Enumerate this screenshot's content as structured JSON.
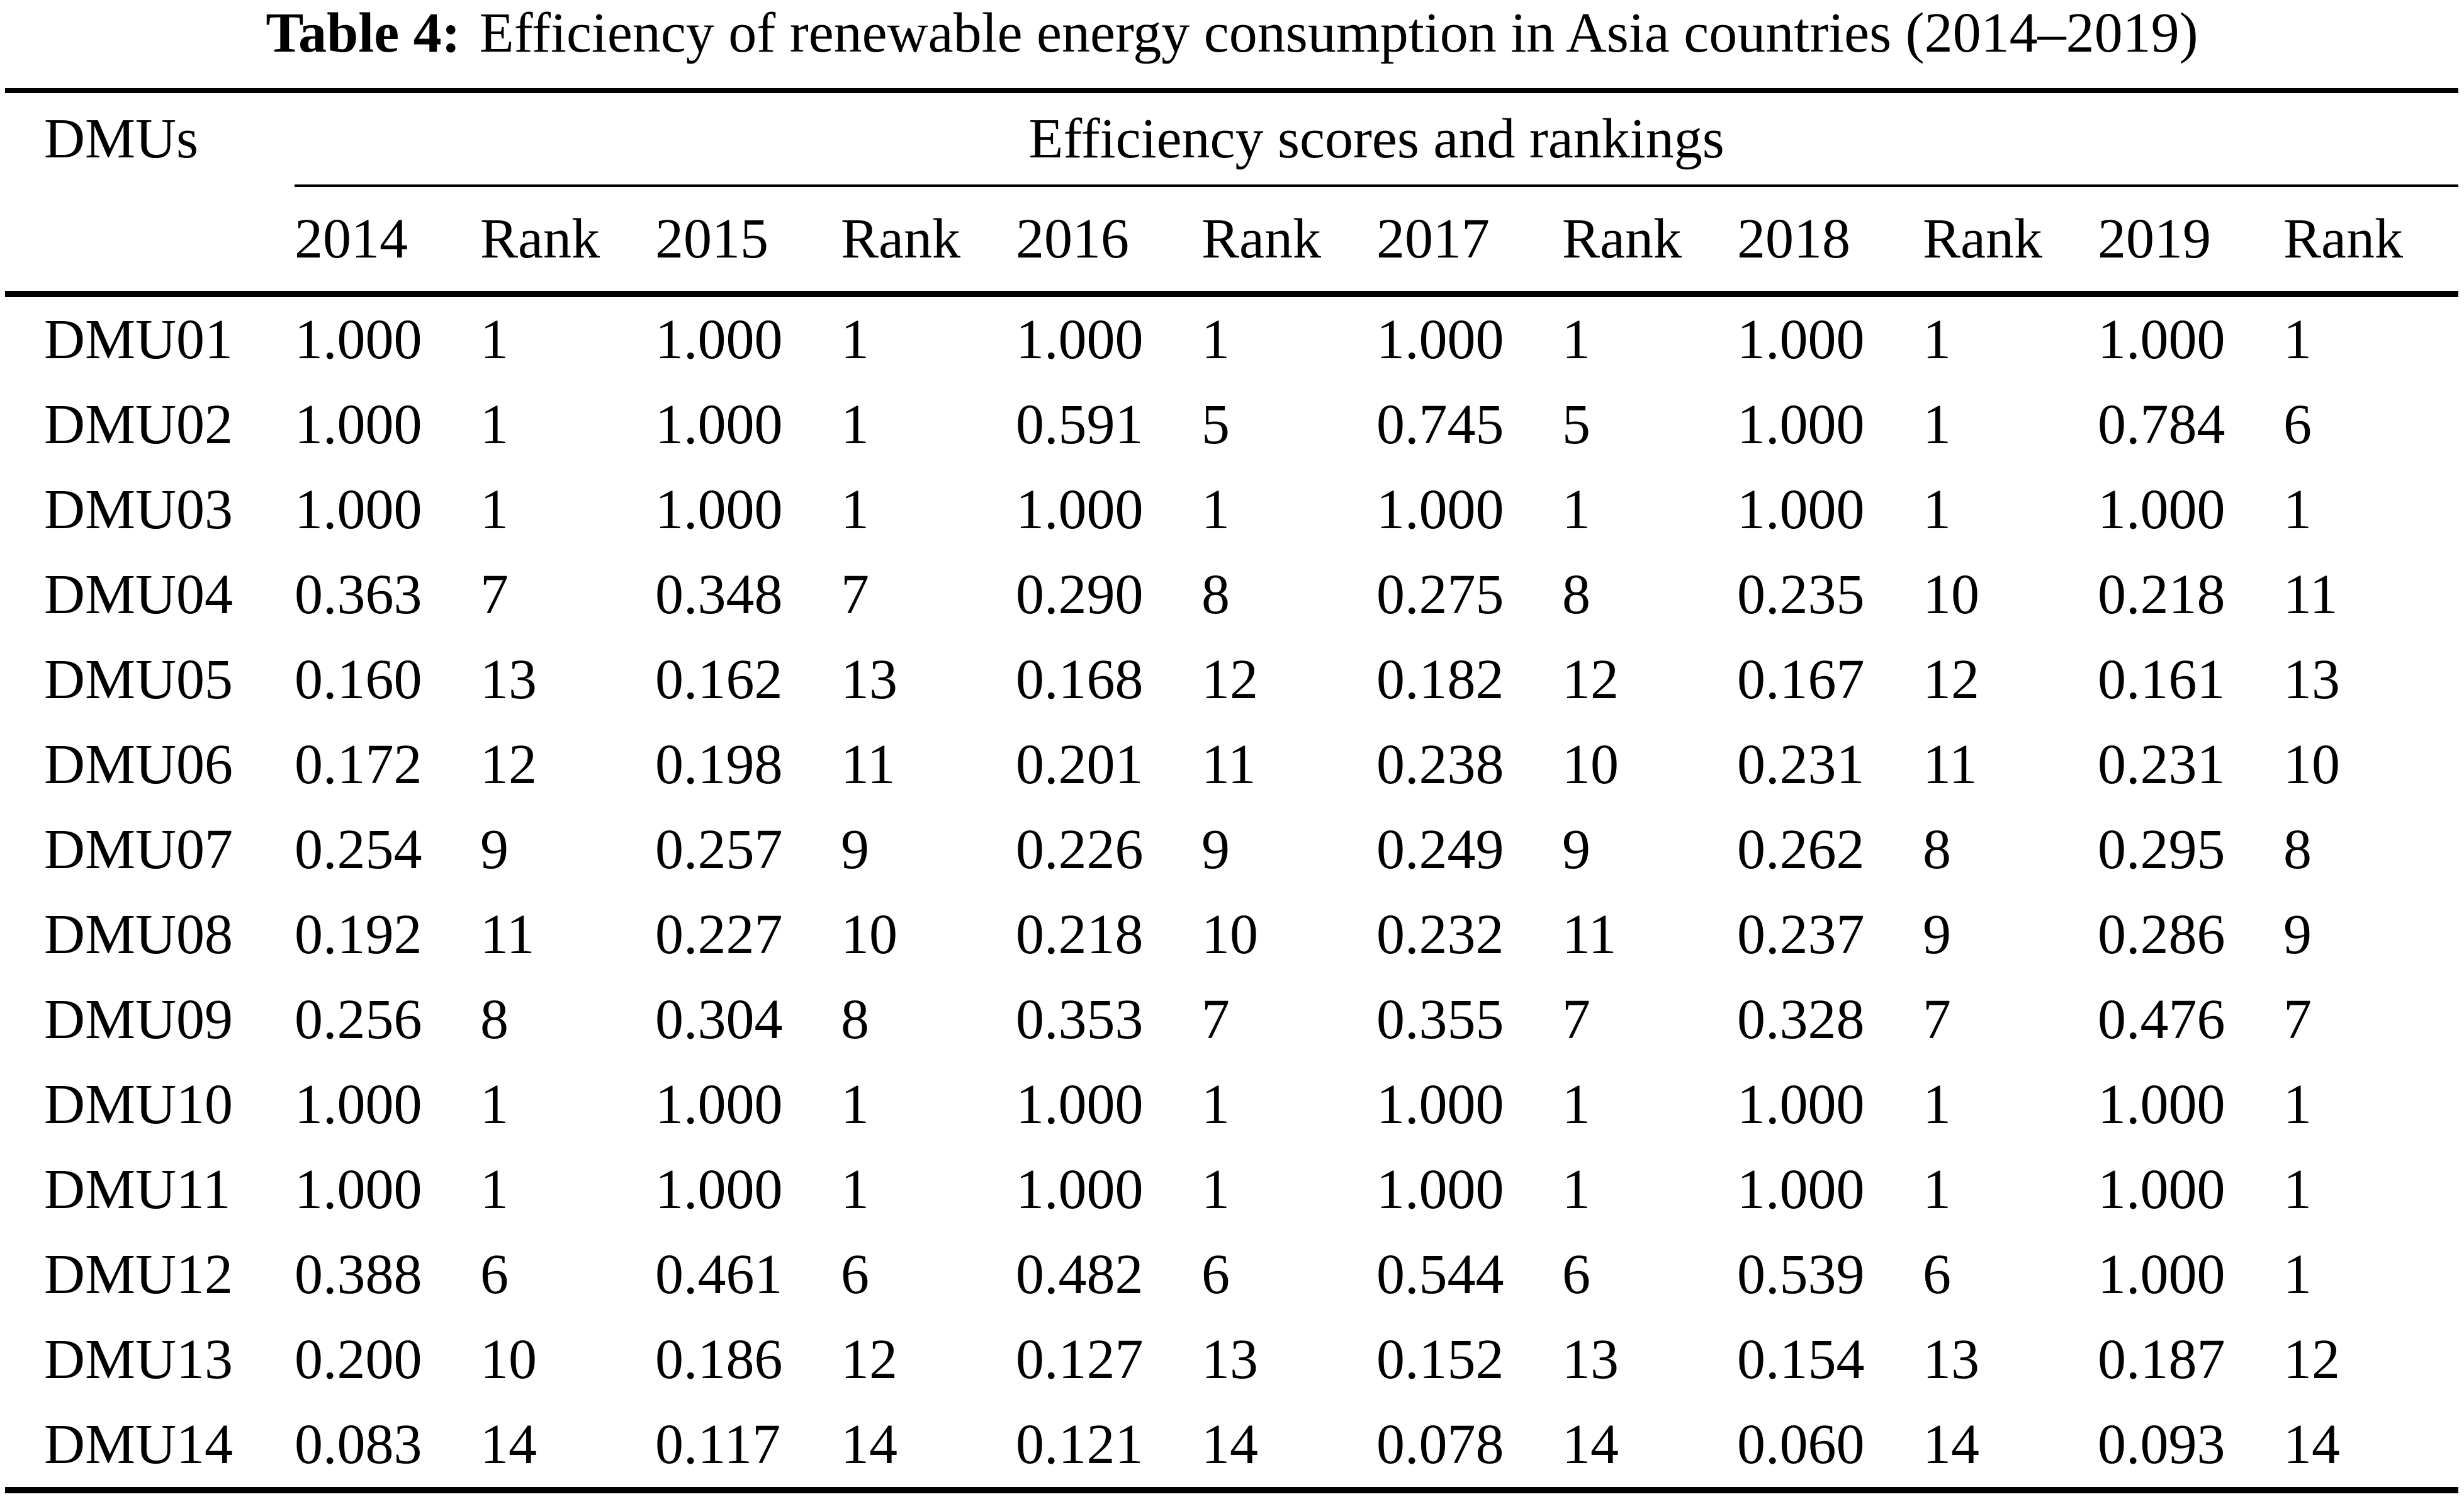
{
  "title": {
    "label": "Table 4:",
    "text": "Efficiency of renewable energy consumption in Asia countries (2014–2019)"
  },
  "table": {
    "dmu_header": "DMUs",
    "group_header": "Efficiency scores and rankings",
    "columns": [
      "2014",
      "Rank",
      "2015",
      "Rank",
      "2016",
      "Rank",
      "2017",
      "Rank",
      "2018",
      "Rank",
      "2019",
      "Rank"
    ],
    "rows": [
      {
        "dmu": "DMU01",
        "values": [
          "1.000",
          "1",
          "1.000",
          "1",
          "1.000",
          "1",
          "1.000",
          "1",
          "1.000",
          "1",
          "1.000",
          "1"
        ]
      },
      {
        "dmu": "DMU02",
        "values": [
          "1.000",
          "1",
          "1.000",
          "1",
          "0.591",
          "5",
          "0.745",
          "5",
          "1.000",
          "1",
          "0.784",
          "6"
        ]
      },
      {
        "dmu": "DMU03",
        "values": [
          "1.000",
          "1",
          "1.000",
          "1",
          "1.000",
          "1",
          "1.000",
          "1",
          "1.000",
          "1",
          "1.000",
          "1"
        ]
      },
      {
        "dmu": "DMU04",
        "values": [
          "0.363",
          "7",
          "0.348",
          "7",
          "0.290",
          "8",
          "0.275",
          "8",
          "0.235",
          "10",
          "0.218",
          "11"
        ]
      },
      {
        "dmu": "DMU05",
        "values": [
          "0.160",
          "13",
          "0.162",
          "13",
          "0.168",
          "12",
          "0.182",
          "12",
          "0.167",
          "12",
          "0.161",
          "13"
        ]
      },
      {
        "dmu": "DMU06",
        "values": [
          "0.172",
          "12",
          "0.198",
          "11",
          "0.201",
          "11",
          "0.238",
          "10",
          "0.231",
          "11",
          "0.231",
          "10"
        ]
      },
      {
        "dmu": "DMU07",
        "values": [
          "0.254",
          "9",
          "0.257",
          "9",
          "0.226",
          "9",
          "0.249",
          "9",
          "0.262",
          "8",
          "0.295",
          "8"
        ]
      },
      {
        "dmu": "DMU08",
        "values": [
          "0.192",
          "11",
          "0.227",
          "10",
          "0.218",
          "10",
          "0.232",
          "11",
          "0.237",
          "9",
          "0.286",
          "9"
        ]
      },
      {
        "dmu": "DMU09",
        "values": [
          "0.256",
          "8",
          "0.304",
          "8",
          "0.353",
          "7",
          "0.355",
          "7",
          "0.328",
          "7",
          "0.476",
          "7"
        ]
      },
      {
        "dmu": "DMU10",
        "values": [
          "1.000",
          "1",
          "1.000",
          "1",
          "1.000",
          "1",
          "1.000",
          "1",
          "1.000",
          "1",
          "1.000",
          "1"
        ]
      },
      {
        "dmu": "DMU11",
        "values": [
          "1.000",
          "1",
          "1.000",
          "1",
          "1.000",
          "1",
          "1.000",
          "1",
          "1.000",
          "1",
          "1.000",
          "1"
        ]
      },
      {
        "dmu": "DMU12",
        "values": [
          "0.388",
          "6",
          "0.461",
          "6",
          "0.482",
          "6",
          "0.544",
          "6",
          "0.539",
          "6",
          "1.000",
          "1"
        ]
      },
      {
        "dmu": "DMU13",
        "values": [
          "0.200",
          "10",
          "0.186",
          "12",
          "0.127",
          "13",
          "0.152",
          "13",
          "0.154",
          "13",
          "0.187",
          "12"
        ]
      },
      {
        "dmu": "DMU14",
        "values": [
          "0.083",
          "14",
          "0.117",
          "14",
          "0.121",
          "14",
          "0.078",
          "14",
          "0.060",
          "14",
          "0.093",
          "14"
        ]
      }
    ]
  }
}
